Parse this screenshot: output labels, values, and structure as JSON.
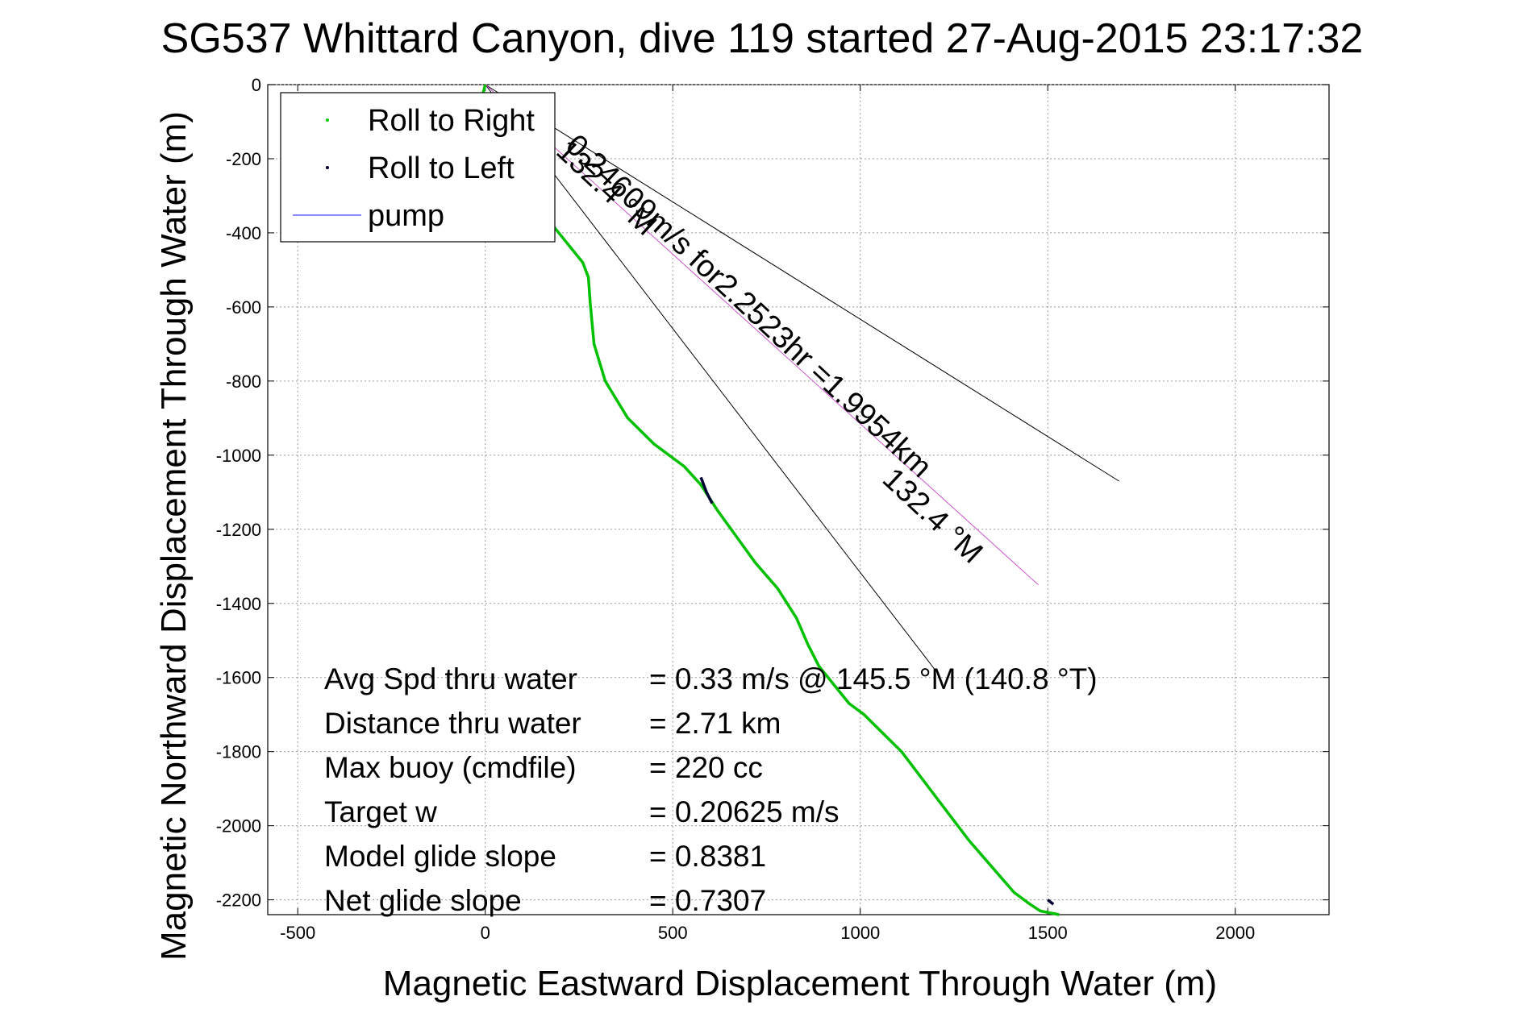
{
  "chart_data": {
    "type": "line",
    "title": "SG537 Whittard Canyon, dive 119 started 27-Aug-2015 23:17:32",
    "xlabel": "Magnetic Eastward Displacement Through Water (m)",
    "ylabel": "Magnetic Northward Displacement Through Water (m)",
    "xlim": [
      -580,
      2250
    ],
    "ylim": [
      -2240,
      0
    ],
    "xticks": [
      -500,
      0,
      500,
      1000,
      1500,
      2000
    ],
    "yticks": [
      0,
      -200,
      -400,
      -600,
      -800,
      -1000,
      -1200,
      -1400,
      -1600,
      -1800,
      -2000,
      -2200
    ],
    "grid": true,
    "legend": {
      "placement": "top-left",
      "entries": [
        {
          "label": "Roll to Right",
          "color": "#00cc00",
          "style": "dot"
        },
        {
          "label": "Roll to Left",
          "color": "#000033",
          "style": "dot"
        },
        {
          "label": "pump",
          "color": "#4040ff",
          "style": "line"
        }
      ]
    },
    "series": [
      {
        "name": "Roll to Right",
        "color": "#00c000",
        "x": [
          0,
          -5,
          30,
          80,
          130,
          180,
          220,
          260,
          275,
          280,
          290,
          320,
          380,
          450,
          530,
          575,
          620,
          670,
          720,
          780,
          830,
          860,
          890,
          930,
          970,
          1010,
          1050,
          1110,
          1170,
          1230,
          1290,
          1350,
          1410,
          1450,
          1480,
          1530
        ],
        "y": [
          0,
          -20,
          -100,
          -200,
          -300,
          -380,
          -430,
          -480,
          -520,
          -590,
          -700,
          -800,
          -900,
          -970,
          -1030,
          -1080,
          -1150,
          -1220,
          -1290,
          -1360,
          -1440,
          -1510,
          -1570,
          -1620,
          -1670,
          -1700,
          -1740,
          -1800,
          -1880,
          -1960,
          -2040,
          -2110,
          -2180,
          -2210,
          -2230,
          -2240
        ]
      },
      {
        "name": "Roll to Left",
        "color": "#000033",
        "segments": [
          {
            "x": [
              575,
              590,
              605
            ],
            "y": [
              -1060,
              -1100,
              -1130
            ]
          },
          {
            "x": [
              1500,
              1515
            ],
            "y": [
              -2200,
              -2212
            ]
          }
        ]
      }
    ],
    "reference_lines": [
      {
        "color": "#000000",
        "x": [
          0,
          1690
        ],
        "y": [
          0,
          -1070
        ]
      },
      {
        "color": "#000000",
        "x": [
          0,
          1200
        ],
        "y": [
          0,
          -1580
        ]
      },
      {
        "name": "pump",
        "color": "#cc55cc",
        "x": [
          0,
          1475
        ],
        "y": [
          0,
          -1350
        ]
      }
    ],
    "annotations": [
      {
        "text": "0.24609m/s for2.2523hr =1.9954km",
        "x": 210,
        "y": -170,
        "angle": 43
      },
      {
        "text": "132.4 °M",
        "x": 1055,
        "y": -1070,
        "angle": 43
      },
      {
        "text": "132.4 °M",
        "x": 185,
        "y": -185,
        "angle": 43
      }
    ],
    "stats": [
      {
        "label": "Avg Spd thru water",
        "value": "=  0.33 m/s @ 145.5 °M (140.8 °T)"
      },
      {
        "label": "Distance thru water",
        "value": "=  2.71 km"
      },
      {
        "label": "Max buoy (cmdfile)",
        "value": "= 220 cc"
      },
      {
        "label": "Target w",
        "value": "= 0.20625 m/s"
      },
      {
        "label": "Model glide slope",
        "value": "= 0.8381"
      },
      {
        "label": "Net glide slope",
        "value": "= 0.7307"
      }
    ]
  }
}
